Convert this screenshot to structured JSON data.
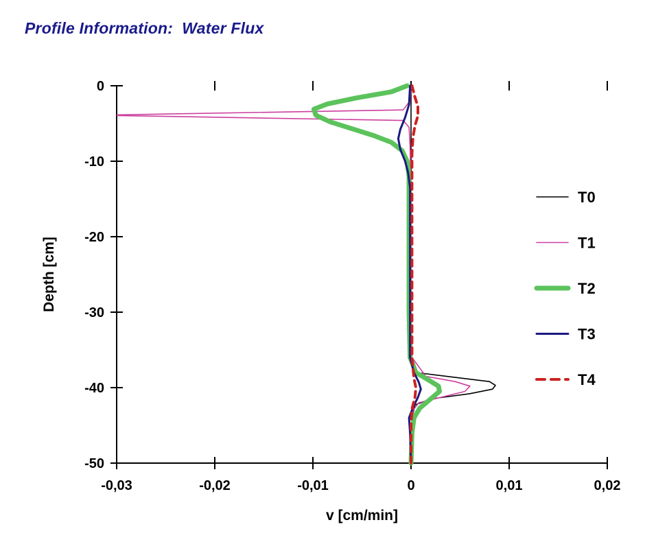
{
  "title": "Profile Information:  Water Flux",
  "chart_data": {
    "type": "line",
    "title": "Profile Information: Water Flux",
    "xlabel": "v [cm/min]",
    "ylabel": "Depth [cm]",
    "xlim": [
      -0.03,
      0.02
    ],
    "ylim": [
      -50,
      0
    ],
    "grid": false,
    "legend_position": "right-inside",
    "x_ticks": [
      {
        "v": -0.03,
        "label": "-0,03"
      },
      {
        "v": -0.02,
        "label": "-0,02"
      },
      {
        "v": -0.01,
        "label": "-0,01"
      },
      {
        "v": 0,
        "label": "0"
      },
      {
        "v": 0.01,
        "label": "0,01"
      },
      {
        "v": 0.02,
        "label": "0,02"
      }
    ],
    "y_ticks": [
      {
        "d": 0,
        "label": "0"
      },
      {
        "d": -10,
        "label": "-10"
      },
      {
        "d": -20,
        "label": "-20"
      },
      {
        "d": -30,
        "label": "-30"
      },
      {
        "d": -40,
        "label": "-40"
      },
      {
        "d": -50,
        "label": "-50"
      }
    ],
    "series": [
      {
        "name": "T0",
        "color": "#000000",
        "width": 1.6,
        "dash": null,
        "points": [
          [
            0,
            0
          ],
          [
            0,
            -5
          ],
          [
            0,
            -10
          ],
          [
            0,
            -20
          ],
          [
            0,
            -30
          ],
          [
            -0.0001,
            -36
          ],
          [
            0.0005,
            -38
          ],
          [
            0.0055,
            -38.8
          ],
          [
            0.008,
            -39.2
          ],
          [
            0.0086,
            -39.7
          ],
          [
            0.0083,
            -40.2
          ],
          [
            0.006,
            -40.8
          ],
          [
            0.002,
            -41.5
          ],
          [
            0.0004,
            -42.3
          ],
          [
            0.0001,
            -44
          ],
          [
            0,
            -50
          ]
        ]
      },
      {
        "name": "T1",
        "color": "#cc3f9e",
        "width": 1.6,
        "dash": null,
        "points": [
          [
            0,
            0
          ],
          [
            -0.0001,
            -2
          ],
          [
            -0.0008,
            -3.2
          ],
          [
            -0.032,
            -3.9
          ],
          [
            -0.0008,
            -4.6
          ],
          [
            -0.0002,
            -5.5
          ],
          [
            -0.0001,
            -8
          ],
          [
            0,
            -15
          ],
          [
            0,
            -30
          ],
          [
            0.0001,
            -36
          ],
          [
            0.0015,
            -38.5
          ],
          [
            0.0045,
            -39.2
          ],
          [
            0.006,
            -39.8
          ],
          [
            0.0055,
            -40.5
          ],
          [
            0.003,
            -41.3
          ],
          [
            0.0008,
            -42
          ],
          [
            0.0002,
            -43
          ],
          [
            0,
            -50
          ]
        ]
      },
      {
        "name": "T2",
        "color": "#5cc35c",
        "width": 7,
        "dash": null,
        "points": [
          [
            -0.0004,
            0
          ],
          [
            -0.002,
            -0.8
          ],
          [
            -0.0055,
            -1.6
          ],
          [
            -0.0085,
            -2.4
          ],
          [
            -0.0099,
            -3.1
          ],
          [
            -0.0097,
            -3.9
          ],
          [
            -0.0082,
            -4.8
          ],
          [
            -0.006,
            -5.7
          ],
          [
            -0.0038,
            -6.6
          ],
          [
            -0.002,
            -7.5
          ],
          [
            -0.0009,
            -8.6
          ],
          [
            -0.0004,
            -10
          ],
          [
            -0.0002,
            -12
          ],
          [
            -0.0002,
            -20
          ],
          [
            -0.0002,
            -30
          ],
          [
            -0.0001,
            -36
          ],
          [
            0.0005,
            -38
          ],
          [
            0.0018,
            -39
          ],
          [
            0.0028,
            -39.8
          ],
          [
            0.0029,
            -40.5
          ],
          [
            0.002,
            -41.5
          ],
          [
            0.0009,
            -42.7
          ],
          [
            0.0003,
            -44
          ],
          [
            0.0001,
            -46
          ],
          [
            0,
            -50
          ]
        ]
      },
      {
        "name": "T3",
        "color": "#1a1a80",
        "width": 3,
        "dash": null,
        "points": [
          [
            -0.0001,
            0
          ],
          [
            -0.0002,
            -2.5
          ],
          [
            -0.0006,
            -4.2
          ],
          [
            -0.0011,
            -5.8
          ],
          [
            -0.0013,
            -7
          ],
          [
            -0.0011,
            -8.4
          ],
          [
            -0.0006,
            -10
          ],
          [
            -0.0003,
            -11.5
          ],
          [
            -0.0001,
            -13.5
          ],
          [
            -0.0001,
            -20
          ],
          [
            -0.0001,
            -30
          ],
          [
            -0.0001,
            -36
          ],
          [
            0.0003,
            -38
          ],
          [
            0.0008,
            -39.3
          ],
          [
            0.001,
            -40.2
          ],
          [
            0.0007,
            -41.3
          ],
          [
            0.0002,
            -42.6
          ],
          [
            -0.0002,
            -44
          ],
          [
            -0.0001,
            -46
          ],
          [
            0,
            -50
          ]
        ]
      },
      {
        "name": "T4",
        "color": "#cc2222",
        "width": 4,
        "dash": "9 7",
        "points": [
          [
            0.0001,
            0
          ],
          [
            0.0004,
            -1.5
          ],
          [
            0.0007,
            -2.8
          ],
          [
            0.0007,
            -4
          ],
          [
            0.0004,
            -5.3
          ],
          [
            0.0002,
            -6.8
          ],
          [
            0.0001,
            -9
          ],
          [
            0.0001,
            -20
          ],
          [
            0.0001,
            -30
          ],
          [
            0.0001,
            -36
          ],
          [
            0.0003,
            -38.8
          ],
          [
            0.0005,
            -40
          ],
          [
            0.0004,
            -41.3
          ],
          [
            0.0001,
            -42.8
          ],
          [
            0,
            -45
          ],
          [
            0,
            -50
          ]
        ]
      }
    ]
  }
}
